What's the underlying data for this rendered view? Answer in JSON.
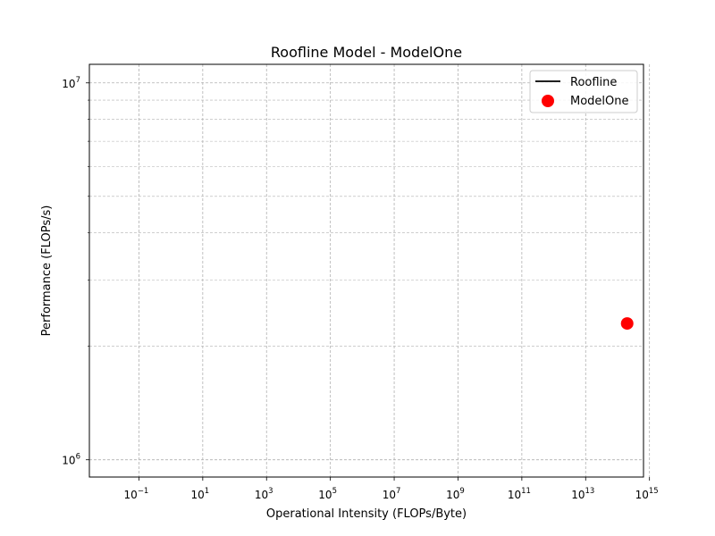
{
  "chart_data": {
    "type": "scatter",
    "title": "Roofline Model - ModelOne",
    "xlabel": "Operational Intensity (FLOPs/Byte)",
    "ylabel": "Performance (FLOPs/s)",
    "xscale": "log",
    "yscale": "log",
    "xlim": [
      0.0028,
      650000000000000.0
    ],
    "ylim": [
      900000,
      11200000
    ],
    "grid": true,
    "legend_position": "top-right",
    "x_ticks": [
      {
        "value": 0.1,
        "base": "10",
        "exp": "−1"
      },
      {
        "value": 10,
        "base": "10",
        "exp": "1"
      },
      {
        "value": 1000,
        "base": "10",
        "exp": "3"
      },
      {
        "value": 100000,
        "base": "10",
        "exp": "5"
      },
      {
        "value": 10000000,
        "base": "10",
        "exp": "7"
      },
      {
        "value": 1000000000,
        "base": "10",
        "exp": "9"
      },
      {
        "value": 100000000000,
        "base": "10",
        "exp": "11"
      },
      {
        "value": 10000000000000,
        "base": "10",
        "exp": "13"
      },
      {
        "value": 1000000000000000,
        "base": "10",
        "exp": "15"
      }
    ],
    "y_ticks": [
      {
        "value": 1000000,
        "base": "10",
        "exp": "6"
      },
      {
        "value": 10000000,
        "base": "10",
        "exp": "7"
      }
    ],
    "series": [
      {
        "name": "Roofline",
        "kind": "line",
        "color": "#000000",
        "points": []
      },
      {
        "name": "ModelOne",
        "kind": "scatter",
        "color": "#ff0000",
        "points": [
          {
            "x": 200000000000000,
            "y": 2300000
          }
        ]
      }
    ]
  }
}
